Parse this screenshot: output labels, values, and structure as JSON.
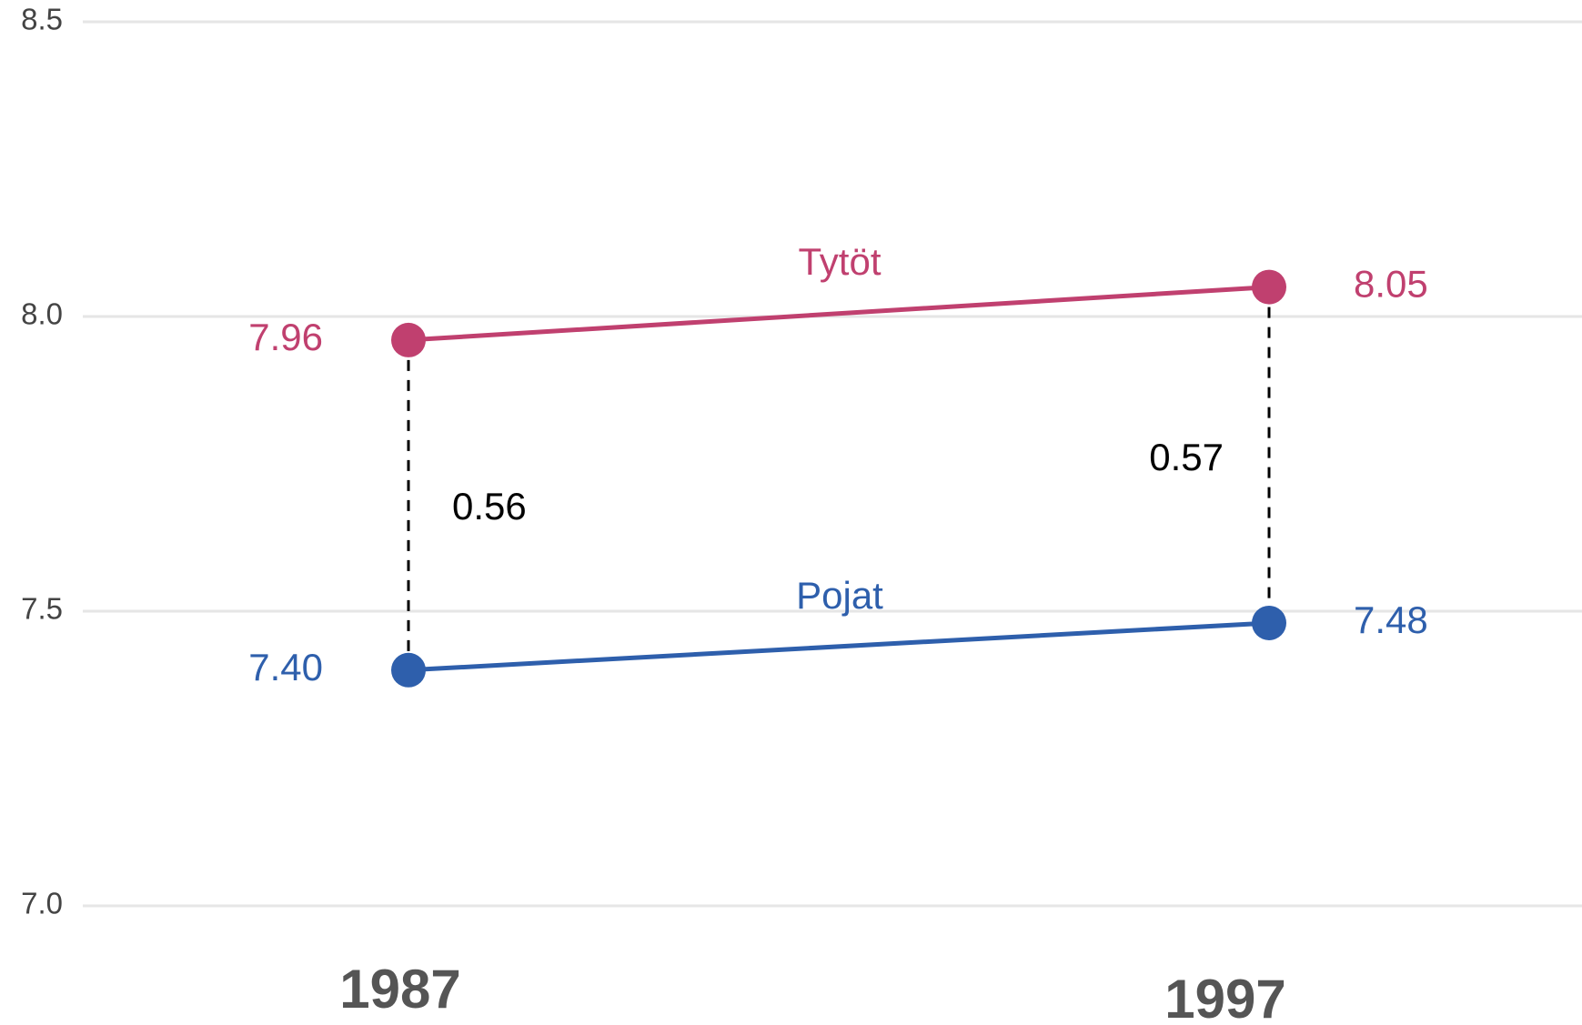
{
  "chart_data": {
    "type": "line",
    "categories": [
      "1987",
      "1997"
    ],
    "series": [
      {
        "name": "Tytöt",
        "color": "#c0406f",
        "values": [
          7.96,
          8.05
        ],
        "value_labels": [
          "7.96",
          "8.05"
        ]
      },
      {
        "name": "Pojat",
        "color": "#2e5fac",
        "values": [
          7.4,
          7.48
        ],
        "value_labels": [
          "7.40",
          "7.48"
        ]
      }
    ],
    "differences": [
      0.56,
      0.57
    ],
    "ylim": [
      7,
      8.5
    ],
    "yticks": [
      {
        "value": 7,
        "label": "7.0"
      },
      7.5,
      {
        "value": 8,
        "label": "8.0"
      },
      8.5
    ],
    "grid": true
  }
}
